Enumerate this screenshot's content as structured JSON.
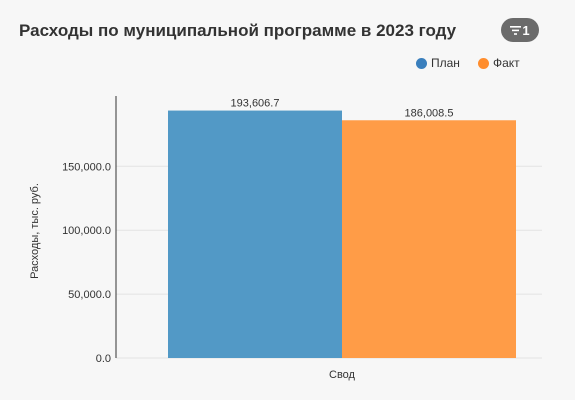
{
  "header": {
    "title": "Расходы по муниципальной программе в 2023 году",
    "filter_count": "1",
    "filter_icon": "filter-icon"
  },
  "colors": {
    "plan": "#5299c6",
    "fact": "#ff9c47",
    "badge": "#6b6b6b"
  },
  "chart_data": {
    "type": "bar",
    "categories": [
      "Свод"
    ],
    "series": [
      {
        "name": "План",
        "values": [
          193606.7
        ],
        "label": "193,606.7"
      },
      {
        "name": "Факт",
        "values": [
          186008.5
        ],
        "label": "186,008.5"
      }
    ],
    "title": "Расходы по муниципальной программе в 2023 году",
    "xlabel": "",
    "ylabel": "Расходы, тыс. руб.",
    "ylim": [
      0,
      205000
    ],
    "yticks": [
      0,
      50000,
      100000,
      150000
    ],
    "ytick_labels": [
      "0.0",
      "50,000.0",
      "100,000.0",
      "150,000.0"
    ],
    "grid": true,
    "legend": "top-right"
  }
}
